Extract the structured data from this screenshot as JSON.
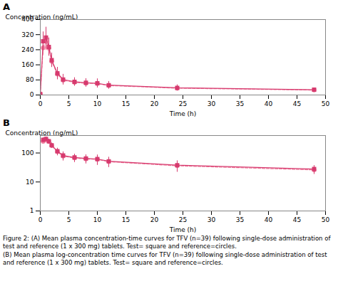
{
  "chart_data": [
    {
      "type": "line",
      "title": "A",
      "x_label": "Time (h)",
      "y_label": "Concentration (ng/mL)",
      "xlim": [
        0,
        50
      ],
      "xticks": [
        0,
        5,
        10,
        15,
        20,
        25,
        30,
        35,
        40,
        45,
        50
      ],
      "ylim": [
        0,
        400
      ],
      "yticks": [
        0,
        80,
        160,
        240,
        320,
        400
      ],
      "x": [
        0,
        0.5,
        1.0,
        1.5,
        2.0,
        3.0,
        4.0,
        6.0,
        8.0,
        10.0,
        12.0,
        24.0,
        48.0
      ],
      "series": [
        {
          "color": "#f080a0",
          "marker": "circle",
          "line_style": "dashed",
          "values": [
            5,
            250,
            285,
            248,
            178,
            110,
            78,
            67,
            62,
            60,
            50,
            36,
            26
          ],
          "errors": [
            2,
            38,
            48,
            42,
            32,
            30,
            24,
            20,
            20,
            22,
            18,
            14,
            8
          ]
        },
        {
          "color": "#d63a6e",
          "marker": "square",
          "line_style": "solid",
          "values": [
            5,
            285,
            305,
            255,
            185,
            115,
            82,
            70,
            65,
            62,
            52,
            38,
            28
          ],
          "errors": [
            2,
            50,
            55,
            48,
            38,
            32,
            28,
            22,
            22,
            24,
            20,
            16,
            9
          ]
        }
      ],
      "annotations": [
        "Figure 2: (A) Mean plasma concentration-time curves for TFV (n=39) following single-dose administration of test and reference (1 x 300 mg) tablets. Test= square and reference=circles."
      ]
    },
    {
      "type": "line",
      "title": "B",
      "log": "y",
      "x_label": "Time (h)",
      "y_label": "Concentration (ng/mL)",
      "xlim": [
        0,
        50
      ],
      "xticks": [
        0,
        5,
        10,
        15,
        20,
        25,
        30,
        35,
        40,
        45,
        50
      ],
      "ylim": [
        1,
        400
      ],
      "yticks": [
        1,
        10,
        100
      ],
      "x": [
        0.5,
        1.0,
        1.5,
        2.0,
        3.0,
        4.0,
        6.0,
        8.0,
        10.0,
        12.0,
        24.0,
        48.0
      ],
      "series": [
        {
          "color": "#f080a0",
          "marker": "circle",
          "line_style": "dashed",
          "values": [
            250,
            285,
            248,
            178,
            110,
            78,
            67,
            62,
            60,
            50,
            36,
            26
          ],
          "errors": [
            38,
            48,
            42,
            32,
            30,
            24,
            20,
            20,
            22,
            18,
            14,
            8
          ]
        },
        {
          "color": "#d63a6e",
          "marker": "square",
          "line_style": "solid",
          "values": [
            285,
            305,
            255,
            185,
            115,
            82,
            70,
            65,
            62,
            52,
            38,
            28
          ],
          "errors": [
            50,
            55,
            48,
            38,
            32,
            28,
            22,
            22,
            24,
            20,
            16,
            9
          ]
        }
      ],
      "annotations": [
        "(B) Mean plasma log-concentration time curves for TFV (n=39) following single-dose administration of test and reference (1 x 300 mg) tablets. Test= square and reference=circles."
      ]
    }
  ]
}
